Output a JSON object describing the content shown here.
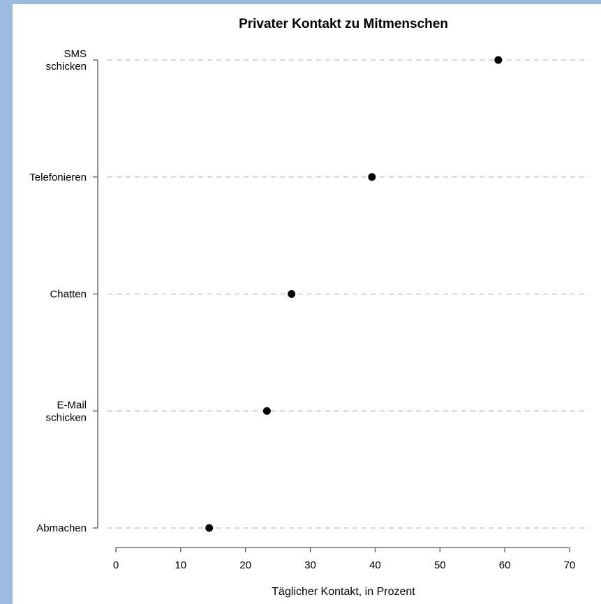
{
  "chart_data": {
    "type": "scatter",
    "title": "Privater Kontakt zu Mitmenschen",
    "xlabel": "Täglicher Kontakt, in Prozent",
    "ylabel": "",
    "xlim": [
      0,
      70
    ],
    "xticks": [
      0,
      10,
      20,
      30,
      40,
      50,
      60,
      70
    ],
    "grid": "horizontal-dashed",
    "categories": [
      [
        "SMS",
        "schicken"
      ],
      [
        "Telefonieren"
      ],
      [
        "Chatten"
      ],
      [
        "E-Mail",
        "schicken"
      ],
      [
        "Abmachen"
      ]
    ],
    "values": [
      59,
      39.5,
      27.1,
      23.3,
      14.4
    ]
  },
  "colors": {
    "background": "#9bbce0",
    "panel": "#ffffff",
    "points": "#000000",
    "grid": "#c8c8c8"
  }
}
